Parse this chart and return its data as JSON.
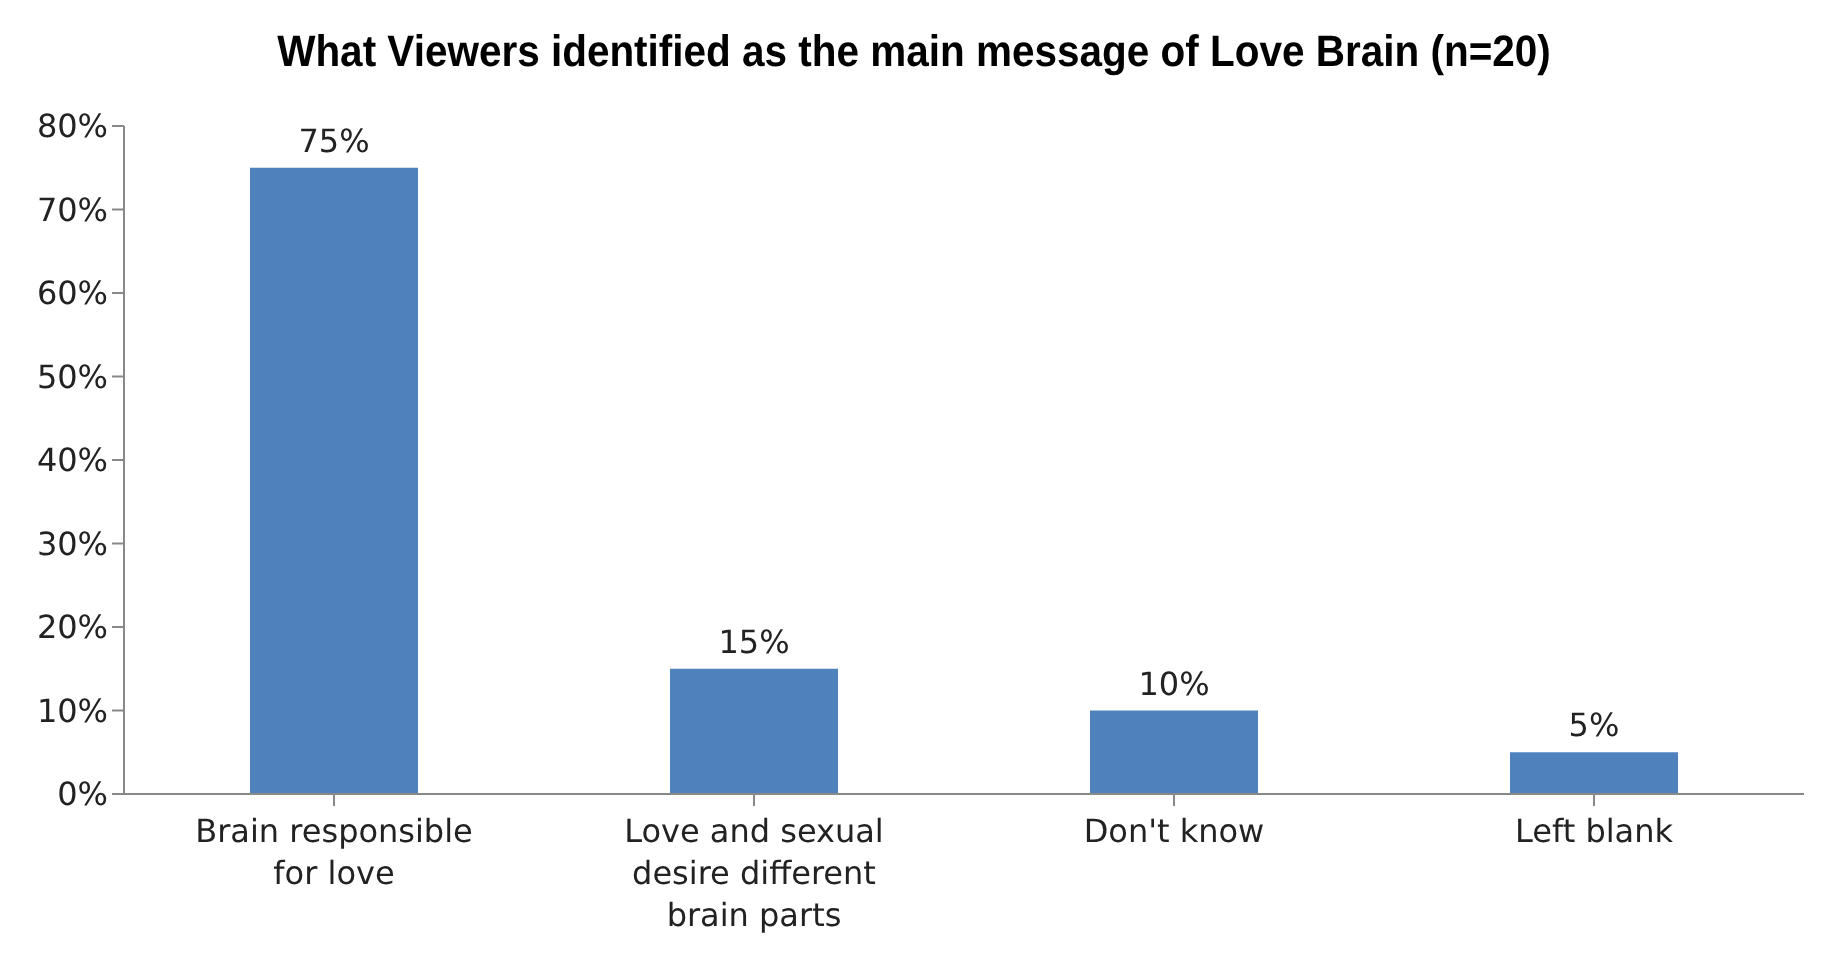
{
  "chart_data": {
    "type": "bar",
    "title": "What Viewers identified as the main message of Love Brain (n=20)",
    "categories": [
      "Brain responsible for love",
      "Love and sexual desire different brain parts",
      "Don't know",
      "Left blank"
    ],
    "values": [
      75,
      15,
      10,
      5
    ],
    "value_labels": [
      "75%",
      "15%",
      "10%",
      "5%"
    ],
    "color": "#4f81bd",
    "ylim": [
      0,
      80
    ],
    "yticks": [
      {
        "value": 0,
        "label": "0%"
      },
      {
        "value": 10,
        "label": "10%"
      },
      {
        "value": 20,
        "label": "20%"
      },
      {
        "value": 30,
        "label": "30%"
      },
      {
        "value": 40,
        "label": "40%"
      },
      {
        "value": 50,
        "label": "50%"
      },
      {
        "value": 60,
        "label": "60%"
      },
      {
        "value": 70,
        "label": "70%"
      },
      {
        "value": 80,
        "label": "80%"
      }
    ],
    "grid": false,
    "legend": false
  }
}
